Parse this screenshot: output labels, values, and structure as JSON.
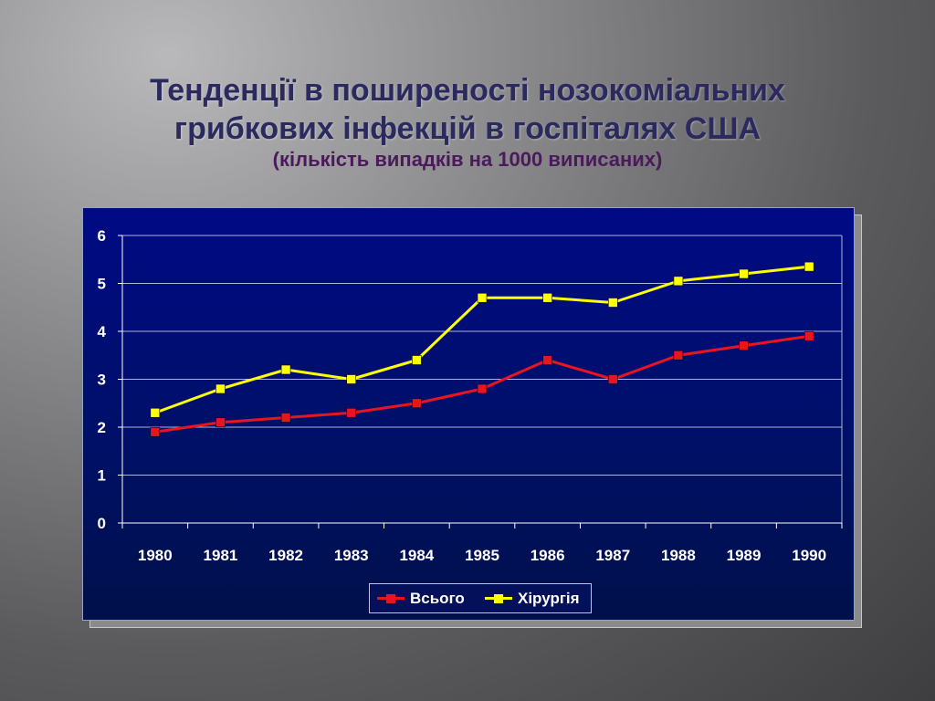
{
  "slide": {
    "title_line1": "Тенденції в поширеності  нозокоміальних",
    "title_line2": "грибкових інфекцій в госпіталях США",
    "subtitle": "(кількість випадків на 1000 виписаних)"
  },
  "chart_data": {
    "type": "line",
    "title": "",
    "xlabel": "",
    "ylabel": "",
    "categories": [
      "1980",
      "1981",
      "1982",
      "1983",
      "1984",
      "1985",
      "1986",
      "1987",
      "1988",
      "1989",
      "1990"
    ],
    "ylim": [
      0,
      6
    ],
    "yticks": [
      "0",
      "1",
      "2",
      "3",
      "4",
      "5",
      "6"
    ],
    "grid": true,
    "legend_position": "bottom",
    "series": [
      {
        "name": "Всього",
        "color": "#e8141e",
        "values": [
          1.9,
          2.1,
          2.2,
          2.3,
          2.5,
          2.8,
          3.4,
          3.0,
          3.5,
          3.7,
          3.9
        ]
      },
      {
        "name": "Хірургія",
        "color": "#ffff00",
        "values": [
          2.3,
          2.8,
          3.2,
          3.0,
          3.4,
          4.7,
          4.7,
          4.6,
          5.05,
          5.2,
          5.35
        ]
      }
    ]
  }
}
